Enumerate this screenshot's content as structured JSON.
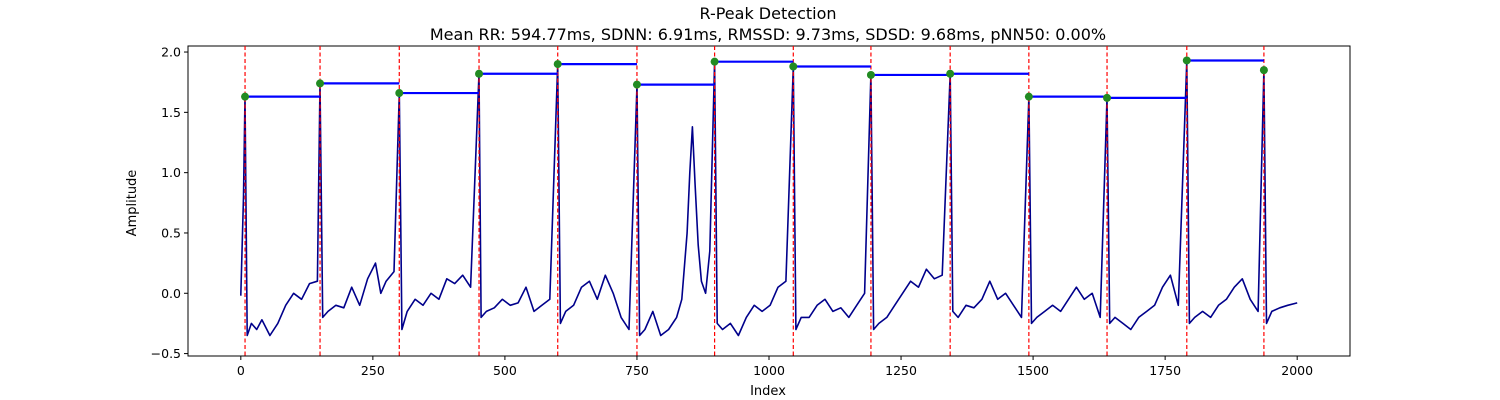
{
  "chart_data": {
    "type": "line",
    "title": "R-Peak Detection",
    "subtitle": "Mean RR: 594.77ms, SDNN: 6.91ms, RMSSD: 9.73ms, SDSD: 9.68ms, pNN50: 0.00%",
    "xlabel": "Index",
    "ylabel": "Amplitude",
    "xlim": [
      -100,
      2100
    ],
    "ylim": [
      -0.52,
      2.05
    ],
    "x_ticks": [
      0,
      250,
      500,
      750,
      1000,
      1250,
      1500,
      1750,
      2000
    ],
    "y_ticks": [
      -0.5,
      0.0,
      0.5,
      1.0,
      1.5,
      2.0
    ],
    "grid": false,
    "signal_color": "#00008b",
    "peak_line_color": "#ff0000",
    "rr_segment_color": "#0000ff",
    "peak_marker_color": "#228b22",
    "peaks": [
      {
        "x": 8,
        "y": 1.63
      },
      {
        "x": 150,
        "y": 1.74
      },
      {
        "x": 300,
        "y": 1.66
      },
      {
        "x": 451,
        "y": 1.82
      },
      {
        "x": 600,
        "y": 1.9
      },
      {
        "x": 750,
        "y": 1.73
      },
      {
        "x": 897,
        "y": 1.92
      },
      {
        "x": 1046,
        "y": 1.88
      },
      {
        "x": 1193,
        "y": 1.81
      },
      {
        "x": 1343,
        "y": 1.82
      },
      {
        "x": 1492,
        "y": 1.63
      },
      {
        "x": 1640,
        "y": 1.62
      },
      {
        "x": 1791,
        "y": 1.93
      },
      {
        "x": 1937,
        "y": 1.85
      }
    ],
    "signal": {
      "x": [
        0,
        5,
        8,
        12,
        20,
        30,
        40,
        55,
        70,
        85,
        100,
        115,
        130,
        145,
        150,
        155,
        165,
        180,
        195,
        210,
        225,
        240,
        255,
        265,
        275,
        290,
        300,
        305,
        315,
        330,
        345,
        360,
        375,
        390,
        405,
        420,
        435,
        451,
        455,
        465,
        480,
        495,
        510,
        525,
        540,
        555,
        570,
        585,
        600,
        605,
        615,
        630,
        645,
        660,
        675,
        690,
        705,
        720,
        735,
        750,
        755,
        765,
        780,
        795,
        810,
        825,
        835,
        845,
        850,
        855,
        860,
        866,
        872,
        880,
        888,
        897,
        902,
        912,
        927,
        942,
        957,
        972,
        987,
        1002,
        1017,
        1032,
        1046,
        1051,
        1061,
        1076,
        1091,
        1106,
        1121,
        1136,
        1151,
        1166,
        1181,
        1193,
        1198,
        1208,
        1223,
        1238,
        1253,
        1268,
        1283,
        1298,
        1313,
        1328,
        1343,
        1348,
        1358,
        1373,
        1388,
        1403,
        1418,
        1433,
        1448,
        1463,
        1478,
        1492,
        1497,
        1507,
        1522,
        1537,
        1552,
        1567,
        1582,
        1597,
        1612,
        1627,
        1640,
        1645,
        1655,
        1670,
        1685,
        1700,
        1715,
        1730,
        1745,
        1760,
        1775,
        1791,
        1796,
        1806,
        1821,
        1836,
        1851,
        1866,
        1881,
        1896,
        1911,
        1926,
        1937,
        1942,
        1952,
        1967,
        1982,
        2000
      ],
      "y": [
        -0.02,
        0.8,
        1.63,
        -0.35,
        -0.25,
        -0.3,
        -0.22,
        -0.35,
        -0.25,
        -0.1,
        0.0,
        -0.05,
        0.08,
        0.1,
        1.74,
        -0.2,
        -0.15,
        -0.1,
        -0.12,
        0.05,
        -0.1,
        0.12,
        0.25,
        0.0,
        0.1,
        0.18,
        1.66,
        -0.3,
        -0.15,
        -0.05,
        -0.1,
        0.0,
        -0.05,
        0.12,
        0.08,
        0.15,
        0.05,
        1.82,
        -0.2,
        -0.15,
        -0.12,
        -0.05,
        -0.1,
        -0.08,
        0.05,
        -0.15,
        -0.1,
        -0.05,
        1.9,
        -0.25,
        -0.15,
        -0.1,
        0.05,
        0.1,
        -0.05,
        0.15,
        0.0,
        -0.2,
        -0.3,
        1.73,
        -0.35,
        -0.3,
        -0.15,
        -0.35,
        -0.3,
        -0.2,
        -0.05,
        0.5,
        1.0,
        1.38,
        0.9,
        0.4,
        0.1,
        0.0,
        0.35,
        1.92,
        -0.25,
        -0.3,
        -0.25,
        -0.35,
        -0.2,
        -0.1,
        -0.15,
        -0.1,
        0.05,
        0.1,
        1.88,
        -0.3,
        -0.2,
        -0.2,
        -0.1,
        -0.05,
        -0.15,
        -0.12,
        -0.2,
        -0.1,
        0.0,
        1.81,
        -0.3,
        -0.25,
        -0.2,
        -0.1,
        0.0,
        0.1,
        0.05,
        0.2,
        0.12,
        0.15,
        1.82,
        -0.15,
        -0.2,
        -0.1,
        -0.12,
        -0.05,
        0.1,
        -0.05,
        0.0,
        -0.1,
        -0.2,
        1.63,
        -0.25,
        -0.2,
        -0.15,
        -0.1,
        -0.15,
        -0.05,
        0.05,
        -0.05,
        0.0,
        -0.2,
        1.62,
        -0.25,
        -0.2,
        -0.25,
        -0.3,
        -0.2,
        -0.15,
        -0.1,
        0.05,
        0.15,
        -0.1,
        1.93,
        -0.25,
        -0.2,
        -0.15,
        -0.2,
        -0.1,
        -0.05,
        0.05,
        0.12,
        -0.05,
        -0.15,
        1.85,
        -0.25,
        -0.15,
        -0.12,
        -0.1,
        -0.08
      ]
    }
  }
}
